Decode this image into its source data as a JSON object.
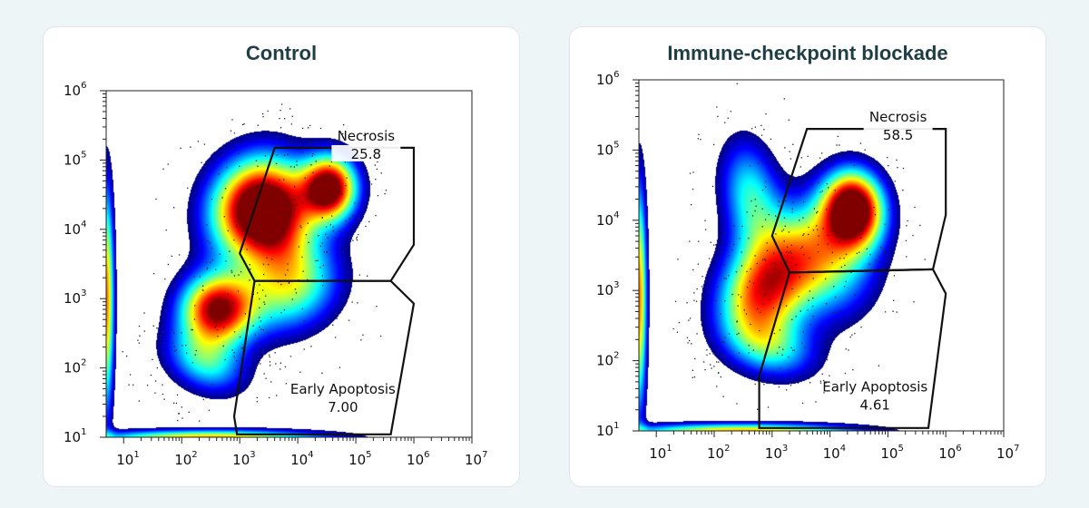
{
  "chart_data": [
    {
      "type": "scatter",
      "subtype": "flow-cytometry-density",
      "title": "Control",
      "x_scale": "log",
      "y_scale": "log",
      "xlim": [
        5,
        10000000
      ],
      "ylim": [
        10,
        1000000
      ],
      "x_ticks": [
        {
          "base": "10",
          "exp": "1",
          "value": 10
        },
        {
          "base": "10",
          "exp": "2",
          "value": 100
        },
        {
          "base": "10",
          "exp": "3",
          "value": 1000
        },
        {
          "base": "10",
          "exp": "4",
          "value": 10000
        },
        {
          "base": "10",
          "exp": "5",
          "value": 100000
        },
        {
          "base": "10",
          "exp": "6",
          "value": 1000000
        },
        {
          "base": "10",
          "exp": "7",
          "value": 10000000
        }
      ],
      "y_ticks": [
        {
          "base": "10",
          "exp": "1",
          "value": 10
        },
        {
          "base": "10",
          "exp": "2",
          "value": 100
        },
        {
          "base": "10",
          "exp": "3",
          "value": 1000
        },
        {
          "base": "10",
          "exp": "4",
          "value": 10000
        },
        {
          "base": "10",
          "exp": "5",
          "value": 100000
        },
        {
          "base": "10",
          "exp": "6",
          "value": 1000000
        }
      ],
      "gates": [
        {
          "name": "Necrosis",
          "percent": "25.8",
          "vertices": [
            [
              4000,
              150000
            ],
            [
              1000000,
              150000
            ],
            [
              1000000,
              6000
            ],
            [
              400000,
              1800
            ],
            [
              1800,
              1800
            ],
            [
              1000,
              4500
            ]
          ],
          "label_at": [
            150000,
            150000
          ]
        },
        {
          "name": "Early Apoptosis",
          "percent": "7.00",
          "vertices": [
            [
              1800,
              1800
            ],
            [
              400000,
              1800
            ],
            [
              1000000,
              850
            ],
            [
              400000,
              11
            ],
            [
              900,
              11
            ],
            [
              800,
              20
            ]
          ],
          "label_at": [
            60000,
            28
          ]
        }
      ],
      "density_clusters": [
        {
          "x": 400,
          "y": 700,
          "sx": 0.45,
          "sy": 0.36,
          "w": 1.0,
          "rot": 0
        },
        {
          "x": 1500,
          "y": 20000,
          "sx": 0.55,
          "sy": 0.5,
          "w": 0.95,
          "rot": 0.6
        },
        {
          "x": 35000,
          "y": 40000,
          "sx": 0.33,
          "sy": 0.33,
          "w": 1.1,
          "rot": 0
        },
        {
          "x": 8000,
          "y": 1500,
          "sx": 0.6,
          "sy": 0.45,
          "w": 0.55,
          "rot": 0.3
        },
        {
          "x": 250,
          "y": 120,
          "sx": 0.5,
          "sy": 0.3,
          "w": 0.45,
          "rot": -0.3
        },
        {
          "x": 5000,
          "y": 15000,
          "sx": 0.45,
          "sy": 0.55,
          "w": 0.55,
          "rot": 0
        }
      ],
      "axis_events": [
        {
          "axis": "x-low",
          "center": 300,
          "spread": 0.9
        },
        {
          "axis": "y-left",
          "center": 1000,
          "spread": 0.8
        }
      ]
    },
    {
      "type": "scatter",
      "subtype": "flow-cytometry-density",
      "title": "Immune-checkpoint blockade",
      "x_scale": "log",
      "y_scale": "log",
      "xlim": [
        5,
        10000000
      ],
      "ylim": [
        10,
        1000000
      ],
      "x_ticks": [
        {
          "base": "10",
          "exp": "1",
          "value": 10
        },
        {
          "base": "10",
          "exp": "2",
          "value": 100
        },
        {
          "base": "10",
          "exp": "3",
          "value": 1000
        },
        {
          "base": "10",
          "exp": "4",
          "value": 10000
        },
        {
          "base": "10",
          "exp": "5",
          "value": 100000
        },
        {
          "base": "10",
          "exp": "6",
          "value": 1000000
        },
        {
          "base": "10",
          "exp": "7",
          "value": 10000000
        }
      ],
      "y_ticks": [
        {
          "base": "10",
          "exp": "1",
          "value": 10
        },
        {
          "base": "10",
          "exp": "2",
          "value": 100
        },
        {
          "base": "10",
          "exp": "3",
          "value": 1000
        },
        {
          "base": "10",
          "exp": "4",
          "value": 10000
        },
        {
          "base": "10",
          "exp": "5",
          "value": 100000
        },
        {
          "base": "10",
          "exp": "6",
          "value": 1000000
        }
      ],
      "gates": [
        {
          "name": "Necrosis",
          "percent": "58.5",
          "vertices": [
            [
              4000,
              200000
            ],
            [
              1000000,
              200000
            ],
            [
              1000000,
              12000
            ],
            [
              600000,
              2000
            ],
            [
              2000,
              1800
            ],
            [
              1000,
              6000
            ]
          ],
          "label_at": [
            150000,
            200000
          ]
        },
        {
          "name": "Early Apoptosis",
          "percent": "4.61",
          "vertices": [
            [
              2000,
              1800
            ],
            [
              600000,
              2000
            ],
            [
              1000000,
              900
            ],
            [
              500000,
              11
            ],
            [
              600,
              11
            ],
            [
              600,
              60
            ]
          ],
          "label_at": [
            60000,
            24
          ]
        }
      ],
      "density_clusters": [
        {
          "x": 25000,
          "y": 15000,
          "sx": 0.36,
          "sy": 0.38,
          "w": 1.15,
          "rot": 0.5
        },
        {
          "x": 500,
          "y": 700,
          "sx": 0.5,
          "sy": 0.45,
          "w": 0.6,
          "rot": 0.3
        },
        {
          "x": 1500,
          "y": 2500,
          "sx": 0.55,
          "sy": 0.5,
          "w": 0.55,
          "rot": 0.5
        },
        {
          "x": 400,
          "y": 25000,
          "sx": 0.35,
          "sy": 0.55,
          "w": 0.45,
          "rot": 0.2
        },
        {
          "x": 10000,
          "y": 3000,
          "sx": 0.55,
          "sy": 0.6,
          "w": 0.5,
          "rot": 0.6
        },
        {
          "x": 1000,
          "y": 150,
          "sx": 0.55,
          "sy": 0.3,
          "w": 0.4,
          "rot": -0.2
        }
      ],
      "axis_events": [
        {
          "axis": "x-low",
          "center": 300,
          "spread": 0.9
        },
        {
          "axis": "y-left",
          "center": 800,
          "spread": 0.8
        }
      ]
    }
  ]
}
